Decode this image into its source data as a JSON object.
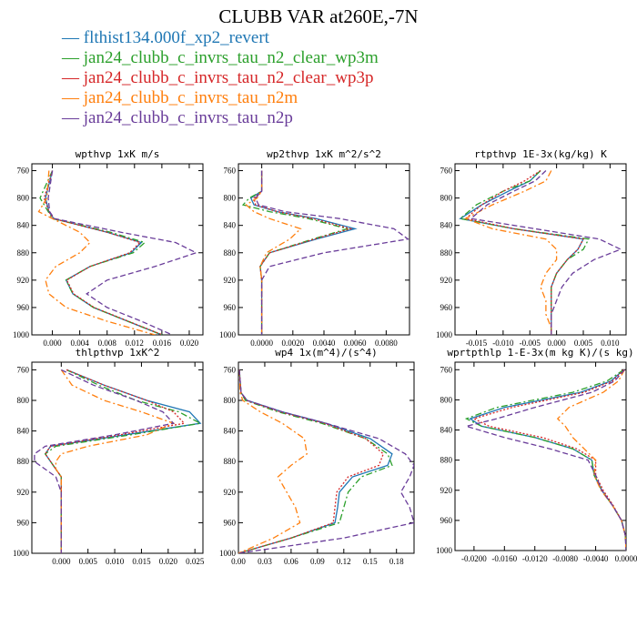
{
  "title": "CLUBB VAR at260E,-7N",
  "legend": [
    {
      "label": "flthist134.000f_xp2_revert",
      "color": "#1f77b4",
      "dash": "solid"
    },
    {
      "label": "jan24_clubb_c_invrs_tau_n2_clear_wp3m",
      "color": "#2ca02c",
      "dash": "dashdot"
    },
    {
      "label": "jan24_clubb_c_invrs_tau_n2_clear_wp3p",
      "color": "#d62728",
      "dash": "dot"
    },
    {
      "label": "jan24_clubb_c_invrs_tau_n2m",
      "color": "#ff7f0e",
      "dash": "dashdot"
    },
    {
      "label": "jan24_clubb_c_invrs_tau_n2p",
      "color": "#6a3d9a",
      "dash": "dash"
    }
  ],
  "chart_data": [
    {
      "type": "line",
      "title": "wpthvp  1xK m/s",
      "xlim": [
        -0.003,
        0.022
      ],
      "ylim": [
        1000,
        750
      ],
      "xticks": [
        "0.000",
        "0.004",
        "0.008",
        "0.012",
        "0.016",
        "0.020"
      ],
      "yticks": [
        "760",
        "800",
        "840",
        "880",
        "920",
        "960",
        "1000"
      ],
      "y": [
        760,
        800,
        820,
        830,
        850,
        865,
        880,
        900,
        920,
        940,
        960,
        980,
        1000
      ],
      "series": [
        {
          "name": "flthist134.000f_xp2_revert",
          "values": [
            0.0,
            -0.001,
            -0.0005,
            0.0002,
            0.008,
            0.013,
            0.0115,
            0.0055,
            0.002,
            0.003,
            0.006,
            0.011,
            0.016
          ]
        },
        {
          "name": "jan24_clubb_c_invrs_tau_n2_clear_wp3m",
          "values": [
            0.0,
            -0.0018,
            -0.0006,
            0.0,
            0.0085,
            0.0135,
            0.0118,
            0.0055,
            0.002,
            0.003,
            0.006,
            0.011,
            0.016
          ]
        },
        {
          "name": "jan24_clubb_c_invrs_tau_n2_clear_wp3p",
          "values": [
            0.0,
            -0.0012,
            -0.0005,
            0.0001,
            0.008,
            0.0128,
            0.0113,
            0.0055,
            0.0021,
            0.0031,
            0.0061,
            0.0111,
            0.0161
          ]
        },
        {
          "name": "jan24_clubb_c_invrs_tau_n2m",
          "values": [
            -0.0005,
            -0.0008,
            -0.002,
            0.0,
            0.004,
            0.0055,
            0.004,
            0.0005,
            -0.001,
            -0.0005,
            0.002,
            0.008,
            0.015
          ]
        },
        {
          "name": "jan24_clubb_c_invrs_tau_n2p",
          "values": [
            0.0,
            -0.0006,
            -0.0004,
            0.0003,
            0.01,
            0.018,
            0.021,
            0.015,
            0.008,
            0.005,
            0.008,
            0.013,
            0.0175
          ]
        }
      ]
    },
    {
      "type": "line",
      "title": "wp2thvp  1xK m^2/s^2",
      "xlim": [
        -0.0015,
        0.0095
      ],
      "ylim": [
        1000,
        750
      ],
      "xticks": [
        "0.0000",
        "0.0020",
        "0.0040",
        "0.0060",
        "0.0080"
      ],
      "yticks": [
        "760",
        "800",
        "840",
        "880",
        "920",
        "960",
        "1000"
      ],
      "y": [
        760,
        790,
        800,
        810,
        820,
        830,
        845,
        860,
        880,
        900,
        920,
        940,
        960,
        980,
        1000
      ],
      "series": [
        {
          "name": "flthist134.000f_xp2_revert",
          "values": [
            0.0,
            0.0,
            -0.0007,
            -0.0005,
            0.001,
            0.0035,
            0.006,
            0.0035,
            0.0005,
            -0.0001,
            0.0,
            0.0,
            0.0,
            0.0,
            0.0
          ]
        },
        {
          "name": "jan24_clubb_c_invrs_tau_n2_clear_wp3m",
          "values": [
            0.0,
            0.0,
            -0.0008,
            -0.0012,
            0.0005,
            0.003,
            0.0055,
            0.0033,
            0.0005,
            -0.0001,
            0.0,
            0.0,
            0.0,
            0.0,
            0.0
          ]
        },
        {
          "name": "jan24_clubb_c_invrs_tau_n2_clear_wp3p",
          "values": [
            0.0,
            0.0,
            -0.0005,
            -0.0004,
            0.001,
            0.0033,
            0.0057,
            0.0034,
            0.0005,
            -0.0001,
            0.0,
            0.0,
            0.0,
            0.0,
            0.0
          ]
        },
        {
          "name": "jan24_clubb_c_invrs_tau_n2m",
          "values": [
            0.0,
            0.0,
            -0.0003,
            -0.001,
            -0.0005,
            0.0005,
            0.0025,
            0.0018,
            0.0003,
            -0.0001,
            0.0,
            0.0,
            0.0,
            0.0,
            0.0
          ]
        },
        {
          "name": "jan24_clubb_c_invrs_tau_n2p",
          "values": [
            0.0,
            0.0,
            -0.0004,
            -0.0002,
            0.0015,
            0.005,
            0.0085,
            0.0094,
            0.004,
            0.0005,
            0.0,
            0.0,
            0.0,
            0.0,
            0.0
          ]
        }
      ]
    },
    {
      "type": "line",
      "title": "rtpthvp  1E-3x(kg/kg) K",
      "xlim": [
        -0.019,
        0.013
      ],
      "ylim": [
        1000,
        750
      ],
      "xticks": [
        "-0.015",
        "-0.010",
        "-0.005",
        "0.000",
        "0.005",
        "0.010"
      ],
      "yticks": [
        "760",
        "800",
        "840",
        "880",
        "920",
        "960",
        "1000"
      ],
      "y": [
        760,
        775,
        790,
        810,
        830,
        845,
        860,
        875,
        890,
        910,
        930,
        950,
        970,
        990,
        1000
      ],
      "series": [
        {
          "name": "flthist134.000f_xp2_revert",
          "values": [
            -0.003,
            -0.005,
            -0.009,
            -0.014,
            -0.018,
            -0.008,
            0.005,
            0.004,
            0.002,
            0.0,
            -0.001,
            -0.001,
            -0.001,
            -0.001,
            -0.001
          ]
        },
        {
          "name": "jan24_clubb_c_invrs_tau_n2_clear_wp3m",
          "values": [
            -0.003,
            -0.005,
            -0.01,
            -0.015,
            -0.018,
            -0.008,
            0.006,
            0.005,
            0.002,
            0.0,
            -0.001,
            -0.001,
            -0.001,
            -0.001,
            -0.001
          ]
        },
        {
          "name": "jan24_clubb_c_invrs_tau_n2_clear_wp3p",
          "values": [
            -0.003,
            -0.006,
            -0.01,
            -0.014,
            -0.017,
            -0.008,
            0.005,
            0.004,
            0.002,
            0.0,
            -0.001,
            -0.001,
            -0.001,
            -0.001,
            -0.001
          ]
        },
        {
          "name": "jan24_clubb_c_invrs_tau_n2m",
          "values": [
            -0.001,
            -0.002,
            -0.006,
            -0.012,
            -0.017,
            -0.012,
            -0.002,
            0.0,
            0.0,
            -0.002,
            -0.003,
            -0.002,
            -0.002,
            -0.001,
            -0.001
          ]
        },
        {
          "name": "jan24_clubb_c_invrs_tau_n2p",
          "values": [
            -0.002,
            -0.004,
            -0.008,
            -0.013,
            -0.016,
            -0.004,
            0.008,
            0.012,
            0.007,
            0.003,
            0.001,
            0.0,
            -0.001,
            -0.001,
            -0.001
          ]
        }
      ]
    },
    {
      "type": "line",
      "title": "thlpthvp  1xK^2",
      "xlim": [
        -0.0055,
        0.0265
      ],
      "ylim": [
        1000,
        750
      ],
      "xticks": [
        "0.000",
        "0.005",
        "0.010",
        "0.015",
        "0.020",
        "0.025"
      ],
      "yticks": [
        "760",
        "800",
        "840",
        "880",
        "920",
        "960",
        "1000"
      ],
      "y": [
        760,
        780,
        800,
        815,
        830,
        845,
        860,
        870,
        880,
        890,
        900,
        920,
        960,
        1000
      ],
      "series": [
        {
          "name": "flthist134.000f_xp2_revert",
          "values": [
            0.001,
            0.008,
            0.016,
            0.024,
            0.026,
            0.012,
            -0.002,
            -0.003,
            -0.002,
            -0.001,
            0.0,
            0.0,
            0.0,
            0.0
          ]
        },
        {
          "name": "jan24_clubb_c_invrs_tau_n2_clear_wp3m",
          "values": [
            0.001,
            0.007,
            0.014,
            0.022,
            0.026,
            0.013,
            -0.001,
            -0.003,
            -0.002,
            -0.001,
            0.0,
            0.0,
            0.0,
            0.0
          ]
        },
        {
          "name": "jan24_clubb_c_invrs_tau_n2_clear_wp3p",
          "values": [
            0.001,
            0.008,
            0.016,
            0.021,
            0.023,
            0.011,
            -0.002,
            -0.003,
            -0.002,
            -0.001,
            0.0,
            0.0,
            0.0,
            0.0
          ]
        },
        {
          "name": "jan24_clubb_c_invrs_tau_n2m",
          "values": [
            0.0,
            0.002,
            0.008,
            0.015,
            0.021,
            0.016,
            0.005,
            0.0,
            -0.001,
            -0.001,
            0.0,
            0.0,
            0.0,
            0.0
          ]
        },
        {
          "name": "jan24_clubb_c_invrs_tau_n2p",
          "values": [
            0.0,
            0.006,
            0.014,
            0.019,
            0.021,
            0.01,
            -0.003,
            -0.005,
            -0.005,
            -0.003,
            -0.001,
            0.0,
            0.0,
            0.0
          ]
        }
      ]
    },
    {
      "type": "line",
      "title": "wp4  1x(m^4)/(s^4)",
      "xlim": [
        0.0,
        0.2
      ],
      "ylim": [
        1000,
        750
      ],
      "xticks": [
        "0.00",
        "0.03",
        "0.06",
        "0.09",
        "0.12",
        "0.15",
        "0.18"
      ],
      "yticks": [
        "760",
        "800",
        "840",
        "880",
        "920",
        "960",
        "1000"
      ],
      "y": [
        760,
        790,
        800,
        815,
        830,
        850,
        870,
        885,
        900,
        920,
        940,
        960,
        980,
        1000
      ],
      "series": [
        {
          "name": "flthist134.000f_xp2_revert",
          "values": [
            0.001,
            0.003,
            0.01,
            0.05,
            0.1,
            0.15,
            0.175,
            0.17,
            0.13,
            0.115,
            0.113,
            0.11,
            0.06,
            0.0
          ]
        },
        {
          "name": "jan24_clubb_c_invrs_tau_n2_clear_wp3m",
          "values": [
            0.001,
            0.003,
            0.008,
            0.045,
            0.095,
            0.145,
            0.17,
            0.175,
            0.14,
            0.125,
            0.12,
            0.115,
            0.06,
            0.0
          ]
        },
        {
          "name": "jan24_clubb_c_invrs_tau_n2_clear_wp3p",
          "values": [
            0.001,
            0.003,
            0.009,
            0.048,
            0.098,
            0.145,
            0.165,
            0.16,
            0.125,
            0.112,
            0.11,
            0.108,
            0.06,
            0.0
          ]
        },
        {
          "name": "jan24_clubb_c_invrs_tau_n2m",
          "values": [
            0.001,
            0.002,
            0.005,
            0.025,
            0.05,
            0.075,
            0.078,
            0.06,
            0.045,
            0.055,
            0.065,
            0.07,
            0.04,
            0.0
          ]
        },
        {
          "name": "jan24_clubb_c_invrs_tau_n2p",
          "values": [
            0.001,
            0.003,
            0.01,
            0.05,
            0.1,
            0.16,
            0.19,
            0.2,
            0.195,
            0.185,
            0.195,
            0.2,
            0.12,
            0.0
          ]
        }
      ]
    },
    {
      "type": "line",
      "title": "wprtpthlp  1-E-3x(m kg K)/(s kg)",
      "xlim": [
        -0.0225,
        0.0
      ],
      "ylim": [
        1000,
        750
      ],
      "xticks": [
        "-0.0200",
        "-0.0160",
        "-0.0120",
        "-0.0080",
        "-0.0040",
        "0.0000"
      ],
      "yticks": [
        "760",
        "800",
        "840",
        "880",
        "920",
        "960",
        "1000"
      ],
      "y": [
        760,
        775,
        790,
        810,
        825,
        835,
        850,
        865,
        880,
        900,
        920,
        940,
        960,
        980,
        1000
      ],
      "series": [
        {
          "name": "flthist134.000f_xp2_revert",
          "values": [
            -0.0003,
            -0.002,
            -0.006,
            -0.016,
            -0.0205,
            -0.019,
            -0.012,
            -0.007,
            -0.0045,
            -0.0042,
            -0.0032,
            -0.0018,
            -0.0006,
            -0.0001,
            0.0
          ]
        },
        {
          "name": "jan24_clubb_c_invrs_tau_n2_clear_wp3m",
          "values": [
            -0.0003,
            -0.0025,
            -0.007,
            -0.017,
            -0.021,
            -0.019,
            -0.012,
            -0.007,
            -0.0045,
            -0.0042,
            -0.0032,
            -0.0018,
            -0.0006,
            -0.0001,
            0.0
          ]
        },
        {
          "name": "jan24_clubb_c_invrs_tau_n2_clear_wp3p",
          "values": [
            -0.0003,
            -0.0018,
            -0.0055,
            -0.015,
            -0.02,
            -0.018,
            -0.011,
            -0.0065,
            -0.004,
            -0.004,
            -0.003,
            -0.0017,
            -0.0006,
            -0.0001,
            0.0
          ]
        },
        {
          "name": "jan24_clubb_c_invrs_tau_n2m",
          "values": [
            -0.0002,
            -0.001,
            -0.003,
            -0.0075,
            -0.009,
            -0.008,
            -0.007,
            -0.0055,
            -0.004,
            -0.0042,
            -0.0033,
            -0.0018,
            -0.0006,
            -0.0001,
            0.0
          ]
        },
        {
          "name": "jan24_clubb_c_invrs_tau_n2p",
          "values": [
            -0.0002,
            -0.0015,
            -0.0045,
            -0.012,
            -0.017,
            -0.021,
            -0.016,
            -0.01,
            -0.005,
            -0.004,
            -0.0032,
            -0.0018,
            -0.0006,
            -0.0001,
            0.0
          ]
        }
      ]
    }
  ]
}
